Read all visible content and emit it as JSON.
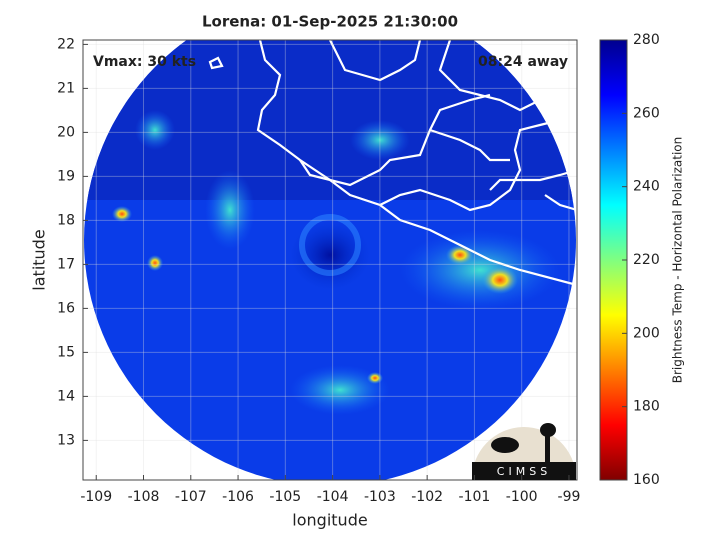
{
  "chart_data": {
    "type": "image-map",
    "title": "Lorena: 01-Sep-2025 21:30:00",
    "annotations": [
      "Vmax: 30 kts",
      "08:24 away"
    ],
    "x_label": "longitude",
    "y_label": "latitude",
    "xlim": [
      -109.28,
      -98.83
    ],
    "ylim": [
      12.1,
      22.1
    ],
    "xticks": [
      -109,
      -108,
      -107,
      -106,
      -105,
      -104,
      -103,
      -102,
      -101,
      -100,
      -99
    ],
    "yticks": [
      13,
      14,
      15,
      16,
      17,
      18,
      19,
      20,
      21,
      22
    ],
    "grid": true,
    "colorbar": {
      "label": "Brightness Temp - Horizontal Polarization",
      "lim": [
        160,
        280
      ],
      "ticks": [
        160,
        180,
        200,
        220,
        240,
        260,
        280
      ],
      "colormap": "jet"
    },
    "logo": "CIMSS"
  }
}
